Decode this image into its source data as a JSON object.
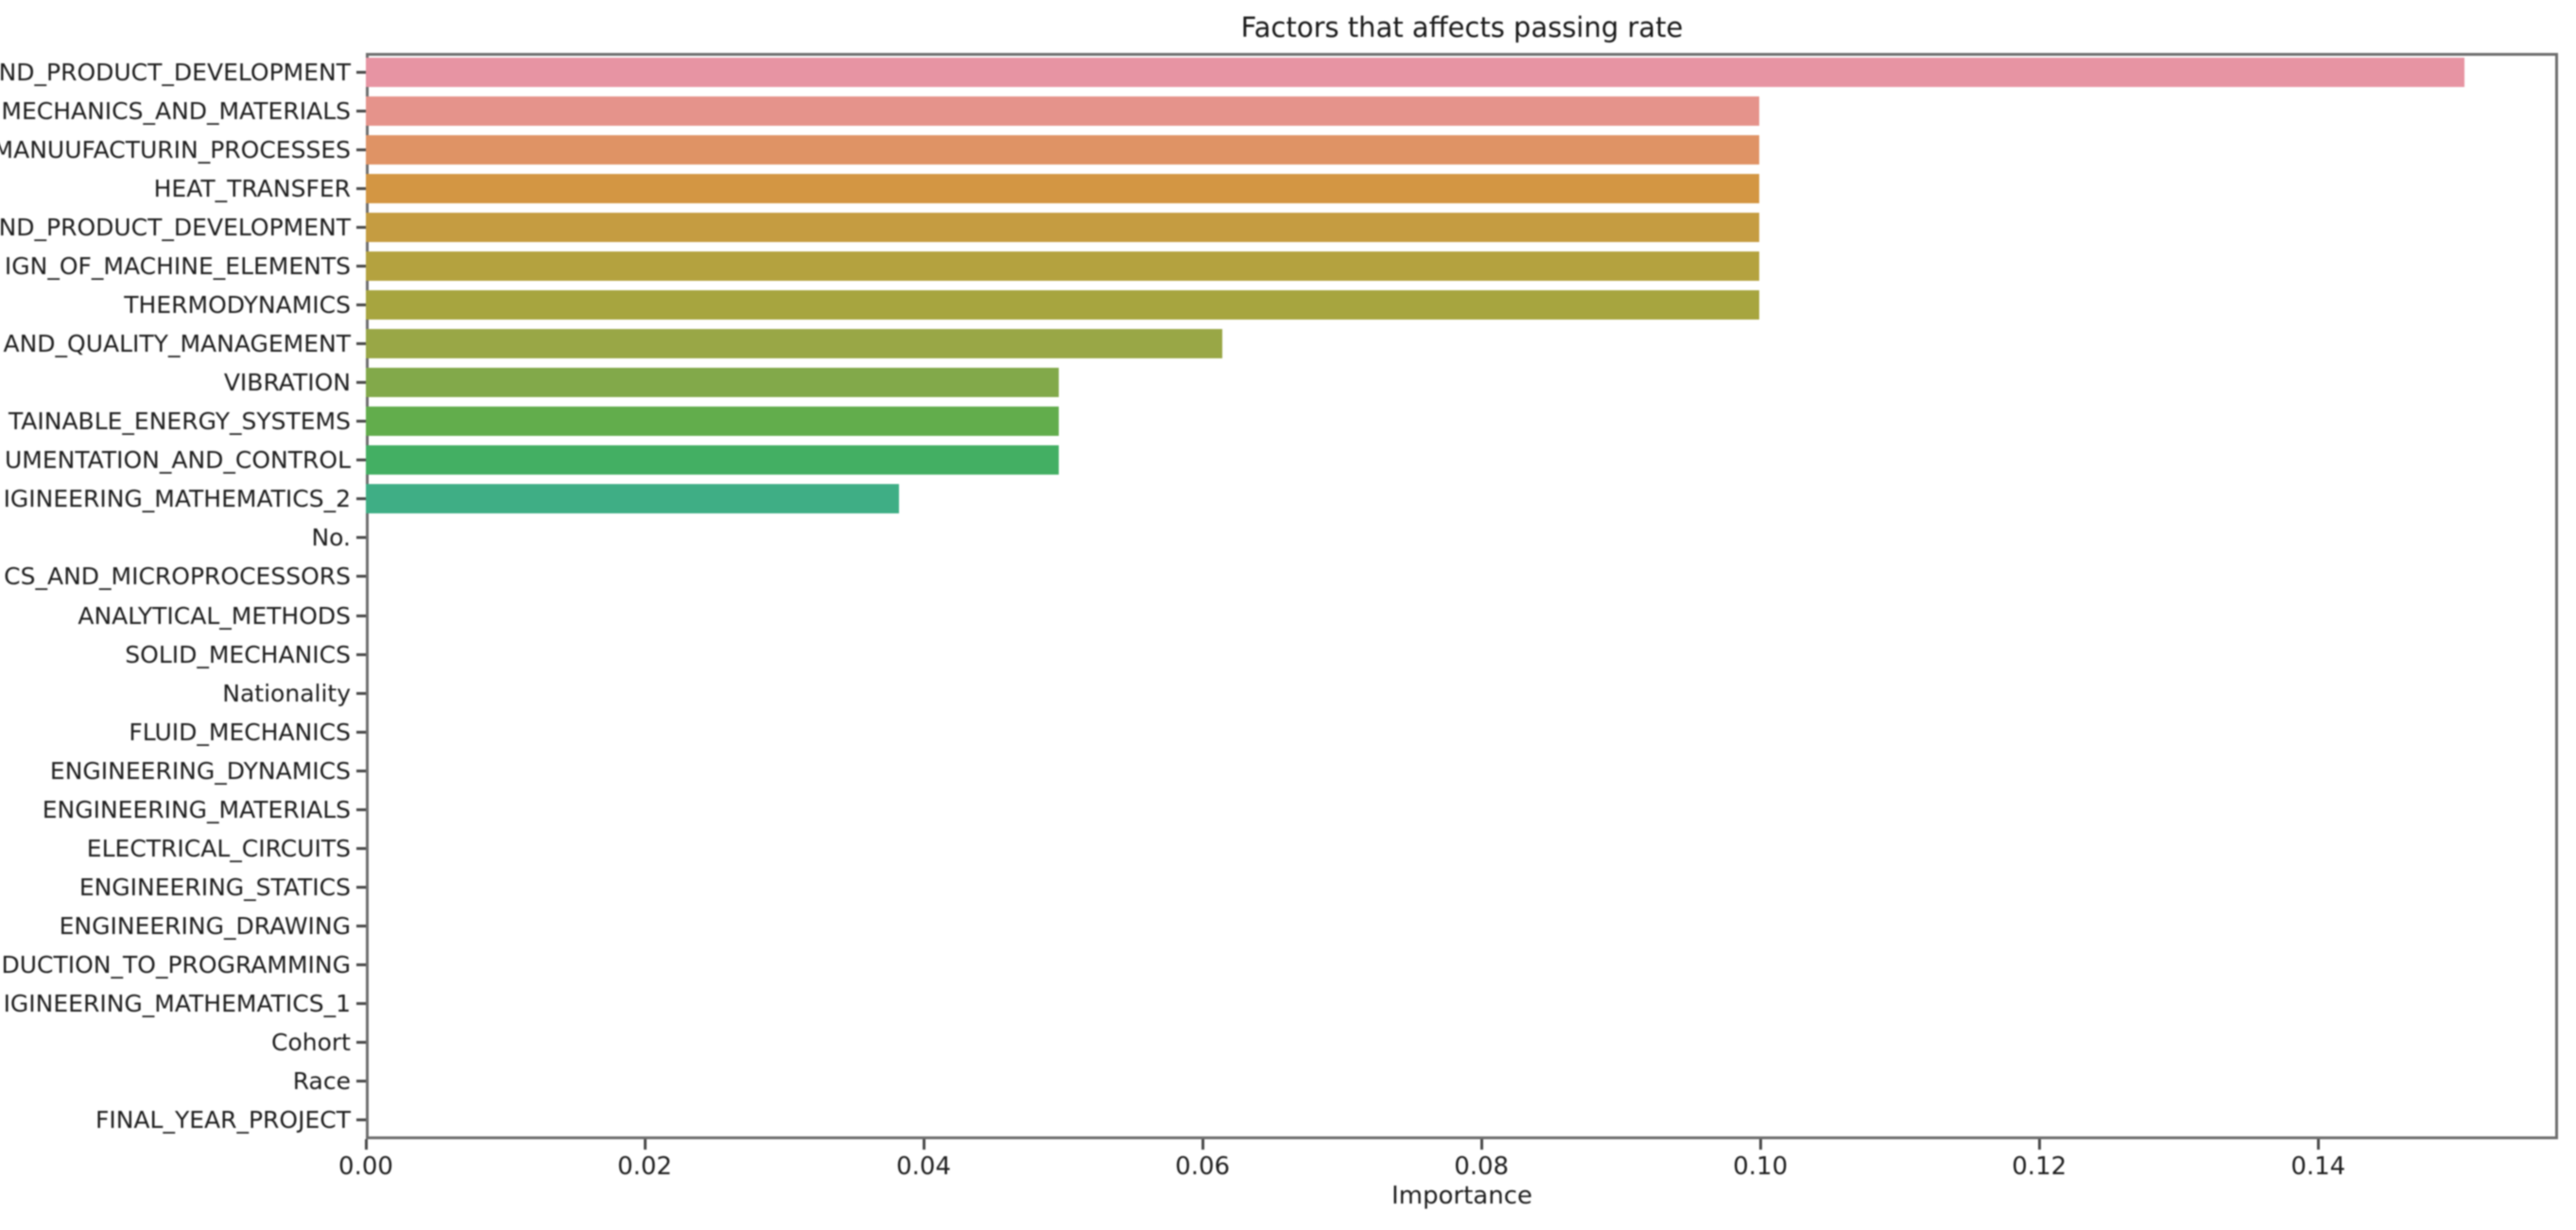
{
  "chart_data": {
    "type": "bar",
    "orientation": "horizontal",
    "title": "Factors that affects passing rate",
    "xlabel": "Importance",
    "ylabel": "",
    "grid": "off",
    "legend": "none",
    "xlim": [
      0,
      0.1572
    ],
    "x_tick_values": [
      0.0,
      0.02,
      0.04,
      0.06,
      0.08,
      0.1,
      0.12,
      0.14
    ],
    "x_tick_labels": [
      "0.00",
      "0.02",
      "0.04",
      "0.06",
      "0.08",
      "0.10",
      "0.12",
      "0.14"
    ],
    "categories": [
      "ND_PRODUCT_DEVELOPMENT",
      "MECHANICS_AND_MATERIALS",
      "MANUUFACTURIN_PROCESSES",
      "HEAT_TRANSFER",
      "ND_PRODUCT_DEVELOPMENT",
      "IGN_OF_MACHINE_ELEMENTS",
      "THERMODYNAMICS",
      "AND_QUALITY_MANAGEMENT",
      "VIBRATION",
      "TAINABLE_ENERGY_SYSTEMS",
      "UMENTATION_AND_CONTROL",
      "IGINEERING_MATHEMATICS_2",
      "No.",
      "CS_AND_MICROPROCESSORS",
      "ANALYTICAL_METHODS",
      "SOLID_MECHANICS",
      "Nationality",
      "FLUID_MECHANICS",
      "ENGINEERING_DYNAMICS",
      "ENGINEERING_MATERIALS",
      "ELECTRICAL_CIRCUITS",
      "ENGINEERING_STATICS",
      "ENGINEERING_DRAWING",
      "DUCTION_TO_PROGRAMMING",
      "IGINEERING_MATHEMATICS_1",
      "Cohort",
      "Race",
      "FINAL_YEAR_PROJECT"
    ],
    "values": [
      0.1505,
      0.0999,
      0.0999,
      0.0999,
      0.0999,
      0.0999,
      0.0999,
      0.0614,
      0.0497,
      0.0497,
      0.0497,
      0.0382,
      0,
      0,
      0,
      0,
      0,
      0,
      0,
      0,
      0,
      0,
      0,
      0,
      0,
      0,
      0,
      0
    ],
    "bar_colors": [
      "#e794a3",
      "#e5938b",
      "#df9365",
      "#d39643",
      "#c59c41",
      "#b4a23f",
      "#a7a53f",
      "#99a746",
      "#82a94a",
      "#62ad4c",
      "#43af63",
      "#3fae85"
    ]
  }
}
